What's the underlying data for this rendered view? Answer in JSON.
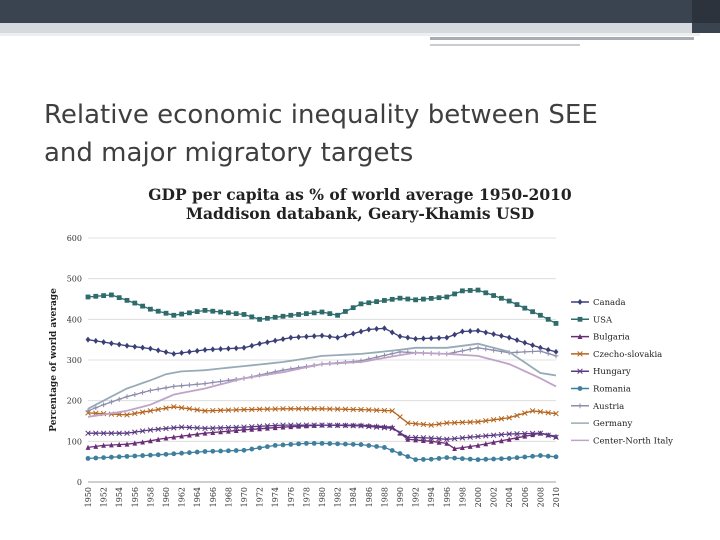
{
  "slide": {
    "title_line1": "Relative economic inequality between SEE",
    "title_line2": "and major migratory targets"
  },
  "chart_data": {
    "type": "line",
    "title": "GDP per capita as % of world average 1950-2010",
    "subtitle": "Maddison databank, Geary-Khamis USD",
    "ylabel": "Percentage of world average",
    "xlabel": "",
    "ylim": [
      0,
      600
    ],
    "yticks": [
      "0",
      "100",
      "200",
      "300",
      "400",
      "500",
      "600"
    ],
    "xticks": [
      "1950",
      "1952",
      "1954",
      "1956",
      "1958",
      "1960",
      "1962",
      "1964",
      "1966",
      "1968",
      "1970",
      "1972",
      "1974",
      "1976",
      "1978",
      "1980",
      "1982",
      "1984",
      "1986",
      "1988",
      "1990",
      "1992",
      "1994",
      "1996",
      "1998",
      "2000",
      "2002",
      "2004",
      "2006",
      "2008",
      "2010"
    ],
    "grid": "horizontal",
    "legend_position": "right",
    "series": [
      {
        "name": "Canada",
        "color": "#3b3f78",
        "marker": "diamond",
        "anchors": [
          [
            1950,
            350
          ],
          [
            1955,
            335
          ],
          [
            1958,
            328
          ],
          [
            1961,
            315
          ],
          [
            1965,
            325
          ],
          [
            1970,
            330
          ],
          [
            1972,
            340
          ],
          [
            1976,
            355
          ],
          [
            1980,
            360
          ],
          [
            1982,
            355
          ],
          [
            1986,
            375
          ],
          [
            1988,
            378
          ],
          [
            1990,
            358
          ],
          [
            1992,
            352
          ],
          [
            1996,
            355
          ],
          [
            1998,
            370
          ],
          [
            2000,
            372
          ],
          [
            2004,
            355
          ],
          [
            2008,
            330
          ],
          [
            2010,
            320
          ]
        ]
      },
      {
        "name": "USA",
        "color": "#2f6b6b",
        "marker": "square",
        "anchors": [
          [
            1950,
            455
          ],
          [
            1953,
            460
          ],
          [
            1956,
            440
          ],
          [
            1958,
            425
          ],
          [
            1961,
            410
          ],
          [
            1965,
            422
          ],
          [
            1970,
            412
          ],
          [
            1972,
            400
          ],
          [
            1976,
            410
          ],
          [
            1980,
            418
          ],
          [
            1982,
            410
          ],
          [
            1985,
            438
          ],
          [
            1990,
            452
          ],
          [
            1992,
            448
          ],
          [
            1996,
            455
          ],
          [
            1998,
            470
          ],
          [
            2000,
            472
          ],
          [
            2004,
            445
          ],
          [
            2008,
            410
          ],
          [
            2010,
            390
          ]
        ]
      },
      {
        "name": "Bulgaria",
        "color": "#6b2c77",
        "marker": "triangle",
        "anchors": [
          [
            1950,
            85
          ],
          [
            1952,
            90
          ],
          [
            1955,
            93
          ],
          [
            1957,
            98
          ],
          [
            1960,
            108
          ],
          [
            1965,
            120
          ],
          [
            1970,
            128
          ],
          [
            1975,
            135
          ],
          [
            1980,
            140
          ],
          [
            1985,
            140
          ],
          [
            1989,
            135
          ],
          [
            1991,
            105
          ],
          [
            1994,
            100
          ],
          [
            1996,
            95
          ],
          [
            1997,
            82
          ],
          [
            2000,
            90
          ],
          [
            2004,
            105
          ],
          [
            2008,
            120
          ],
          [
            2010,
            112
          ]
        ]
      },
      {
        "name": "Czecho-slovakia",
        "color": "#b5651d",
        "marker": "x",
        "anchors": [
          [
            1950,
            170
          ],
          [
            1955,
            165
          ],
          [
            1958,
            175
          ],
          [
            1961,
            185
          ],
          [
            1965,
            175
          ],
          [
            1970,
            178
          ],
          [
            1975,
            180
          ],
          [
            1980,
            180
          ],
          [
            1985,
            178
          ],
          [
            1989,
            175
          ],
          [
            1991,
            145
          ],
          [
            1994,
            140
          ],
          [
            1996,
            145
          ],
          [
            2000,
            148
          ],
          [
            2004,
            158
          ],
          [
            2007,
            175
          ],
          [
            2010,
            168
          ]
        ]
      },
      {
        "name": "Hungary",
        "color": "#5a3b82",
        "marker": "x",
        "anchors": [
          [
            1950,
            120
          ],
          [
            1955,
            120
          ],
          [
            1958,
            128
          ],
          [
            1962,
            135
          ],
          [
            1965,
            132
          ],
          [
            1970,
            135
          ],
          [
            1975,
            140
          ],
          [
            1980,
            140
          ],
          [
            1985,
            138
          ],
          [
            1989,
            132
          ],
          [
            1991,
            110
          ],
          [
            1994,
            108
          ],
          [
            1996,
            105
          ],
          [
            2000,
            112
          ],
          [
            2004,
            118
          ],
          [
            2008,
            120
          ],
          [
            2010,
            110
          ]
        ]
      },
      {
        "name": "Romania",
        "color": "#3f7f9e",
        "marker": "circle",
        "anchors": [
          [
            1950,
            58
          ],
          [
            1955,
            63
          ],
          [
            1960,
            68
          ],
          [
            1965,
            75
          ],
          [
            1970,
            78
          ],
          [
            1974,
            90
          ],
          [
            1978,
            95
          ],
          [
            1980,
            95
          ],
          [
            1985,
            92
          ],
          [
            1988,
            85
          ],
          [
            1990,
            70
          ],
          [
            1992,
            55
          ],
          [
            1994,
            56
          ],
          [
            1996,
            60
          ],
          [
            2000,
            55
          ],
          [
            2004,
            58
          ],
          [
            2008,
            65
          ],
          [
            2010,
            62
          ]
        ]
      },
      {
        "name": "Austria",
        "color": "#8c8cae",
        "marker": "plus",
        "anchors": [
          [
            1950,
            175
          ],
          [
            1952,
            190
          ],
          [
            1955,
            210
          ],
          [
            1958,
            225
          ],
          [
            1961,
            235
          ],
          [
            1965,
            242
          ],
          [
            1970,
            255
          ],
          [
            1975,
            275
          ],
          [
            1980,
            290
          ],
          [
            1985,
            298
          ],
          [
            1990,
            320
          ],
          [
            1992,
            318
          ],
          [
            1996,
            315
          ],
          [
            2000,
            330
          ],
          [
            2004,
            318
          ],
          [
            2008,
            322
          ],
          [
            2010,
            310
          ]
        ]
      },
      {
        "name": "Germany",
        "color": "#97abb6",
        "marker": "none",
        "anchors": [
          [
            1950,
            180
          ],
          [
            1952,
            200
          ],
          [
            1955,
            230
          ],
          [
            1958,
            250
          ],
          [
            1960,
            265
          ],
          [
            1962,
            272
          ],
          [
            1965,
            275
          ],
          [
            1970,
            285
          ],
          [
            1975,
            295
          ],
          [
            1980,
            310
          ],
          [
            1985,
            315
          ],
          [
            1990,
            325
          ],
          [
            1992,
            330
          ],
          [
            1996,
            330
          ],
          [
            2000,
            340
          ],
          [
            2004,
            320
          ],
          [
            2008,
            268
          ],
          [
            2010,
            262
          ]
        ]
      },
      {
        "name": "Center-North Italy",
        "color": "#c0a3c9",
        "marker": "none",
        "anchors": [
          [
            1950,
            160
          ],
          [
            1955,
            175
          ],
          [
            1958,
            190
          ],
          [
            1961,
            215
          ],
          [
            1965,
            230
          ],
          [
            1970,
            255
          ],
          [
            1975,
            270
          ],
          [
            1980,
            290
          ],
          [
            1985,
            295
          ],
          [
            1990,
            312
          ],
          [
            1992,
            318
          ],
          [
            1996,
            315
          ],
          [
            2000,
            310
          ],
          [
            2004,
            290
          ],
          [
            2008,
            255
          ],
          [
            2010,
            235
          ]
        ]
      }
    ]
  }
}
